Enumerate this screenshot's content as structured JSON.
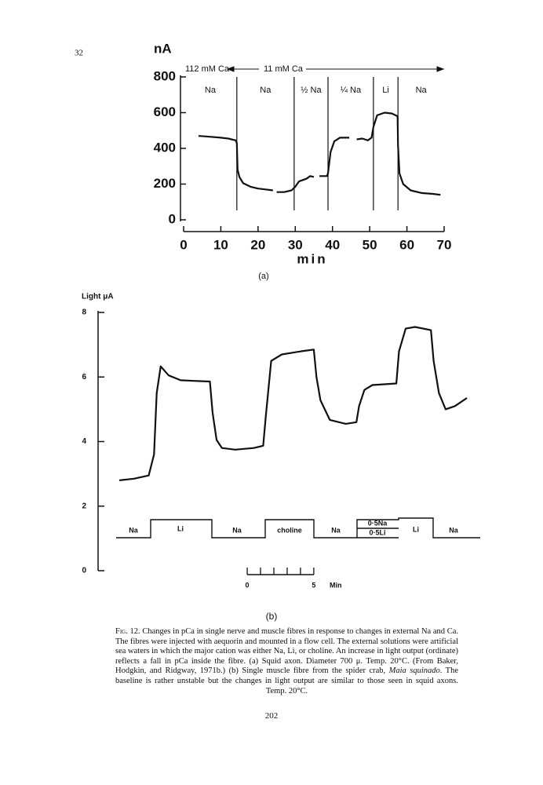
{
  "page_number": "32",
  "folio": "202",
  "chart_data": [
    {
      "type": "line",
      "panel": "(a)",
      "ylabel": "nA",
      "xlabel": "min",
      "annotations": [
        "112 mM Ca",
        "11 mM Ca"
      ],
      "solutions": [
        "Na",
        "Na",
        "½ Na",
        "¼ Na",
        "Li",
        "Na"
      ],
      "changes": [
        14.3,
        29.7,
        38.8,
        51,
        57.6
      ],
      "xlim": [
        0,
        70
      ],
      "ylim": [
        0,
        800
      ],
      "xticks": [
        0,
        10,
        20,
        30,
        40,
        50,
        60,
        70
      ],
      "yticks": [
        0,
        200,
        400,
        600,
        800
      ],
      "color": "#111111",
      "x": [
        4,
        7,
        10,
        12,
        14,
        14.3,
        14.5,
        15,
        16,
        18,
        20,
        22,
        24,
        24.5,
        25,
        27,
        29,
        30,
        31,
        33,
        34,
        35,
        36,
        36.5,
        38.5,
        38.8,
        39.5,
        40.5,
        42,
        44.5,
        45.5,
        46.5,
        48,
        49.5,
        50.5,
        51,
        52,
        54,
        56,
        57.5,
        57.6,
        58,
        59,
        61,
        64,
        67,
        69
      ],
      "values": [
        470,
        465,
        460,
        455,
        445,
        430,
        280,
        240,
        205,
        185,
        175,
        170,
        165,
        null,
        155,
        155,
        165,
        185,
        215,
        230,
        245,
        240,
        null,
        245,
        245,
        260,
        380,
        440,
        460,
        460,
        null,
        450,
        455,
        445,
        460,
        520,
        585,
        600,
        595,
        580,
        420,
        260,
        200,
        165,
        150,
        145,
        140
      ]
    },
    {
      "type": "line",
      "panel": "(b)",
      "ylabel": "Light μA",
      "xlim": [
        -11.2,
        17.5
      ],
      "ylim": [
        0,
        8
      ],
      "yticks": [
        0,
        2,
        4,
        6,
        8
      ],
      "scale_ticks": [
        0,
        1,
        2,
        3,
        4,
        5
      ],
      "scale_labels": [
        0,
        5
      ],
      "scale_unit": "Min",
      "solutions": [
        "Na",
        "Li",
        "Na",
        "choline",
        "Na",
        "0·5Na",
        "0·5Li",
        "Li",
        "Na"
      ],
      "color": "#111111",
      "x": [
        -9.6,
        -8.5,
        -7.4,
        -7.0,
        -6.8,
        -6.5,
        -5.9,
        -5.0,
        -4,
        -2.8,
        -2.6,
        -2.3,
        -1.9,
        -0.9,
        0.5,
        1.2,
        1.4,
        1.8,
        2.6,
        4.1,
        5.0,
        5.2,
        5.5,
        6.2,
        7.4,
        8.2,
        8.4,
        8.8,
        9.4,
        11.2,
        11.4,
        11.9,
        12.6,
        13.8,
        14.0,
        14.4,
        14.9,
        15.6,
        16.5
      ],
      "values": [
        2.8,
        2.85,
        2.95,
        3.6,
        5.5,
        6.33,
        6.05,
        5.9,
        5.88,
        5.86,
        4.9,
        4.05,
        3.8,
        3.75,
        3.8,
        3.87,
        4.8,
        6.5,
        6.7,
        6.8,
        6.85,
        6.0,
        5.28,
        4.67,
        4.55,
        4.6,
        5.1,
        5.6,
        5.75,
        5.8,
        6.8,
        7.5,
        7.55,
        7.45,
        6.5,
        5.5,
        5.0,
        5.1,
        5.35
      ]
    }
  ],
  "caption": {
    "label": "Fig. 12.",
    "text_1": "Changes in pCa in single nerve and muscle fibres in response to changes in external Na and Ca. The fibres were injected with aequorin and mounted in a flow cell. The external solutions were artificial sea waters in which the major cation was either Na, Li, or choline. An increase in light output (ordinate) reflects a fall in pCa inside the fibre. (a) Squid axon. Diameter 700 μ. Temp. 20°C. (From Baker, Hodgkin, and Ridgway, 1971b.) (b) Single muscle fibre from the spider crab,",
    "species": "Maia squinado",
    "text_2": ". The baseline is rather unstable but the changes in light output are similar to those seen in squid axons. Temp. 20°C."
  }
}
